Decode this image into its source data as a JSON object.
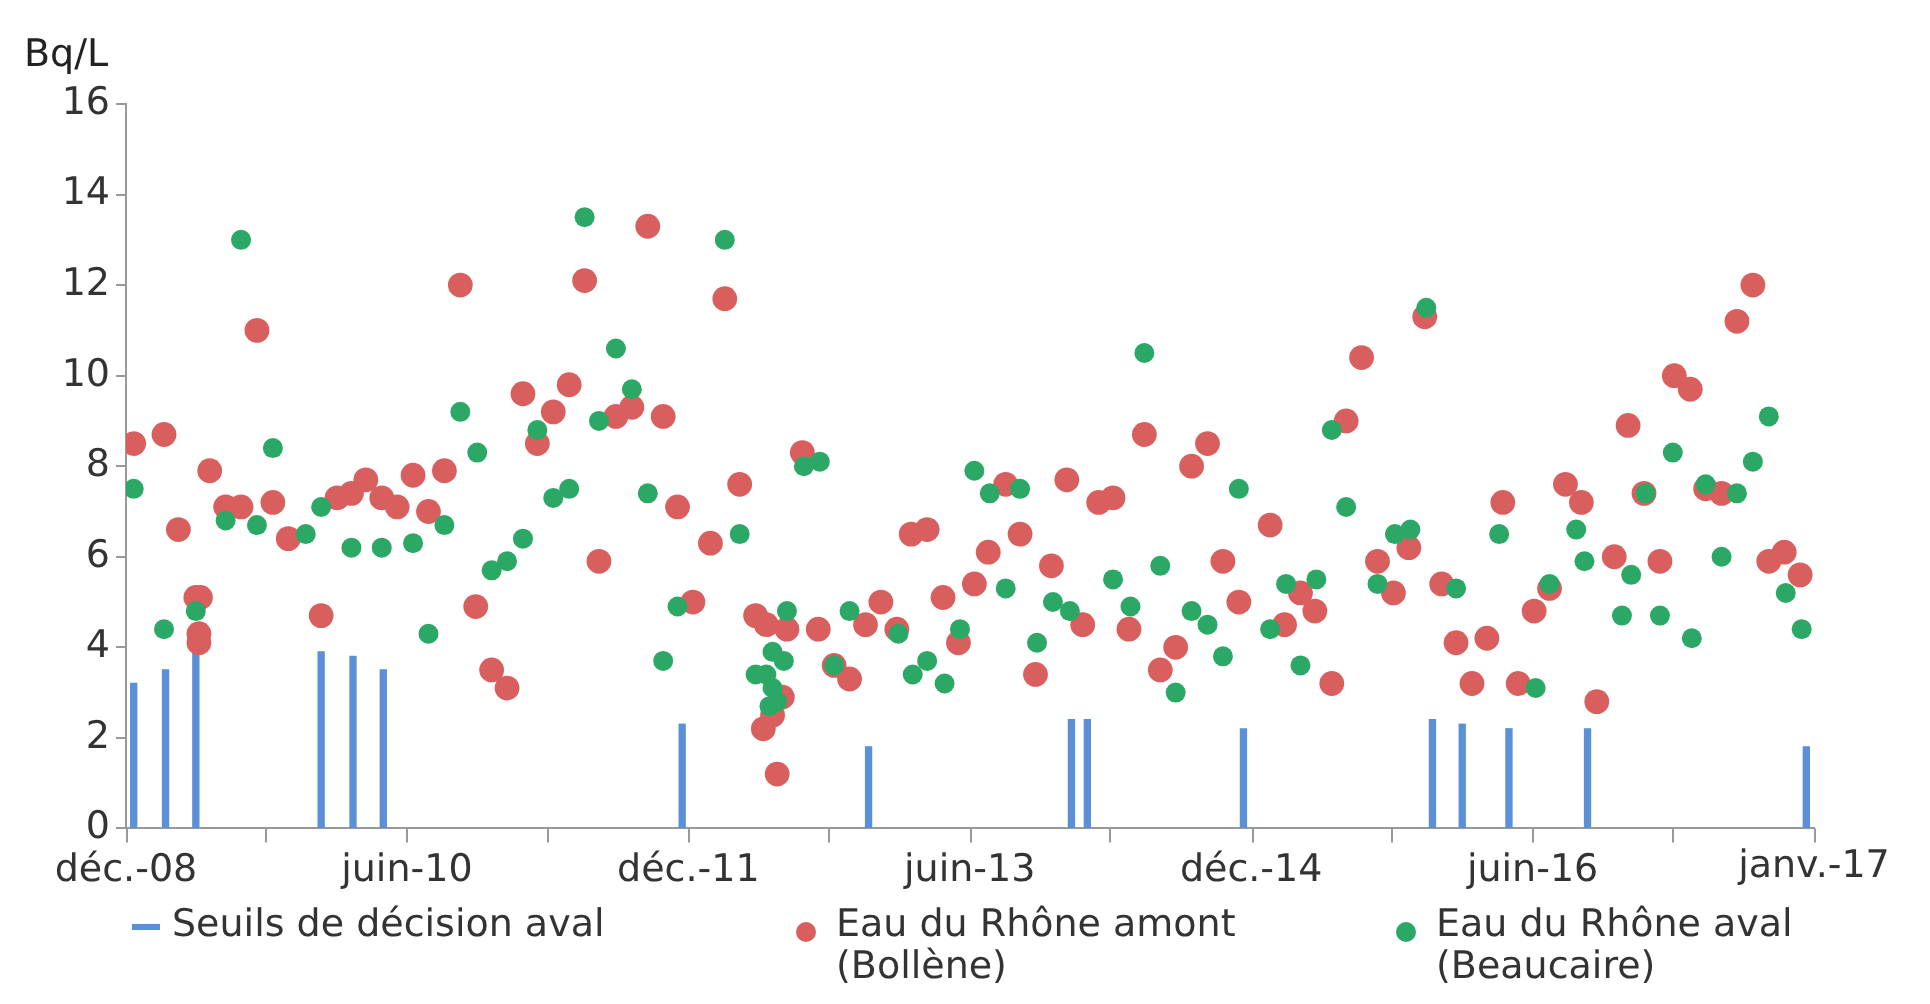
{
  "chart_data": {
    "type": "scatter",
    "ylabel": "Bq/L",
    "annotations": [
      "janv.-17"
    ],
    "xlim": [
      "2008-12-01",
      "2017-12-01"
    ],
    "xticks": [
      {
        "value": "2008-12-01",
        "label": "déc.-08"
      },
      {
        "value": "2010-06-01",
        "label": "juin-10"
      },
      {
        "value": "2011-12-01",
        "label": "déc.-11"
      },
      {
        "value": "2013-06-01",
        "label": "juin-13"
      },
      {
        "value": "2014-12-01",
        "label": "déc.-14"
      },
      {
        "value": "2016-06-01",
        "label": "juin-16"
      },
      {
        "value": "2017-12-01",
        "label": null
      }
    ],
    "ylim": [
      0,
      16
    ],
    "yticks": [
      0,
      2,
      4,
      6,
      8,
      10,
      12,
      14,
      16
    ],
    "grid": false,
    "legend": "bottom",
    "marker": "circle",
    "series": [
      {
        "name": "Seuils de décision aval",
        "type": "bar",
        "color": "#5b8fd6",
        "x": [
          "2008-12-16",
          "2009-02-16",
          "2009-04-16",
          "2009-12-16",
          "2010-02-16",
          "2010-04-16",
          "2011-11-19",
          "2012-11-16",
          "2013-12-16",
          "2014-01-16",
          "2014-11-16",
          "2015-11-19",
          "2016-01-16",
          "2016-04-16",
          "2016-09-16",
          "2017-11-16"
        ],
        "values": [
          3.2,
          3.5,
          4.0,
          3.9,
          3.8,
          3.5,
          2.3,
          1.8,
          2.4,
          2.4,
          2.2,
          2.4,
          2.3,
          2.2,
          2.2,
          1.8
        ]
      },
      {
        "name": "Eau du Rhône amont (Bollène)",
        "color": "#d95f5f",
        "x": [
          "2008-12-16",
          "2009-02-13",
          "2009-03-13",
          "2009-04-16",
          "2009-04-22",
          "2009-04-22",
          "2009-04-25",
          "2009-05-13",
          "2009-06-13",
          "2009-07-13",
          "2009-08-13",
          "2009-09-13",
          "2009-10-13",
          "2009-12-16",
          "2010-01-16",
          "2010-02-13",
          "2010-03-13",
          "2010-04-13",
          "2010-05-13",
          "2010-06-13",
          "2010-07-13",
          "2010-08-13",
          "2010-09-13",
          "2010-10-13",
          "2010-11-13",
          "2010-12-13",
          "2011-01-13",
          "2011-02-10",
          "2011-03-13",
          "2011-04-13",
          "2011-05-13",
          "2011-06-10",
          "2011-07-13",
          "2011-08-13",
          "2011-09-13",
          "2011-10-13",
          "2011-11-10",
          "2011-12-10",
          "2012-01-13",
          "2012-02-10",
          "2012-03-10",
          "2012-04-10",
          "2012-04-25",
          "2012-05-01",
          "2012-05-13",
          "2012-05-22",
          "2012-06-01",
          "2012-06-10",
          "2012-07-10",
          "2012-08-10",
          "2012-09-10",
          "2012-10-10",
          "2012-11-10",
          "2012-12-10",
          "2013-01-10",
          "2013-02-07",
          "2013-03-10",
          "2013-04-10",
          "2013-05-10",
          "2013-06-10",
          "2013-07-07",
          "2013-08-10",
          "2013-09-07",
          "2013-10-07",
          "2013-11-07",
          "2013-12-07",
          "2014-01-07",
          "2014-02-07",
          "2014-03-07",
          "2014-04-07",
          "2014-05-07",
          "2014-06-07",
          "2014-07-07",
          "2014-08-07",
          "2014-09-07",
          "2014-10-07",
          "2014-11-07",
          "2015-01-07",
          "2015-02-04",
          "2015-03-07",
          "2015-04-04",
          "2015-05-07",
          "2015-06-04",
          "2015-07-04",
          "2015-08-04",
          "2015-09-04",
          "2015-10-04",
          "2015-11-04",
          "2015-12-07",
          "2016-01-04",
          "2016-02-04",
          "2016-03-04",
          "2016-04-04",
          "2016-05-04",
          "2016-06-04",
          "2016-07-04",
          "2016-08-04",
          "2016-09-04",
          "2016-10-04",
          "2016-11-07",
          "2016-12-04",
          "2017-01-04",
          "2017-02-04",
          "2017-03-04",
          "2017-04-04",
          "2017-05-04",
          "2017-06-04",
          "2017-07-04",
          "2017-08-04",
          "2017-09-04",
          "2017-10-04",
          "2017-11-04"
        ],
        "values": [
          8.5,
          8.7,
          6.6,
          5.1,
          4.3,
          4.1,
          5.1,
          7.9,
          7.1,
          7.1,
          11.0,
          7.2,
          6.4,
          4.7,
          7.3,
          7.4,
          7.7,
          7.3,
          7.1,
          7.8,
          7.0,
          7.9,
          12.0,
          4.9,
          3.5,
          3.1,
          9.6,
          8.5,
          9.2,
          9.8,
          12.1,
          5.9,
          9.1,
          9.3,
          13.3,
          9.1,
          7.1,
          5.0,
          6.3,
          11.7,
          7.6,
          4.7,
          2.2,
          4.5,
          2.5,
          1.2,
          2.9,
          4.4,
          8.3,
          4.4,
          3.6,
          3.3,
          4.5,
          5.0,
          4.4,
          6.5,
          6.6,
          5.1,
          4.1,
          5.4,
          6.1,
          7.6,
          6.5,
          3.4,
          5.8,
          7.7,
          4.5,
          7.2,
          7.3,
          4.4,
          8.7,
          3.5,
          4.0,
          8.0,
          8.5,
          5.9,
          5.0,
          6.7,
          4.5,
          5.2,
          4.8,
          3.2,
          9.0,
          10.4,
          5.9,
          5.2,
          6.2,
          11.3,
          5.4,
          4.1,
          3.2,
          4.2,
          7.2,
          3.2,
          4.8,
          5.3,
          7.6,
          7.2,
          2.8,
          6.0,
          8.9,
          7.4,
          5.9,
          10.0,
          9.7,
          7.5,
          7.4,
          11.2,
          12.0,
          5.9,
          6.1,
          5.6
        ]
      },
      {
        "name": "Eau du Rhône aval (Beaucaire)",
        "color": "#2ca866",
        "x": [
          "2008-12-16",
          "2009-02-13",
          "2009-04-16",
          "2009-06-13",
          "2009-07-13",
          "2009-08-13",
          "2009-09-13",
          "2009-11-16",
          "2009-12-16",
          "2010-02-13",
          "2010-04-13",
          "2010-06-13",
          "2010-07-13",
          "2010-08-13",
          "2010-09-13",
          "2010-10-16",
          "2010-11-13",
          "2010-12-13",
          "2011-01-13",
          "2011-02-10",
          "2011-03-13",
          "2011-04-13",
          "2011-05-13",
          "2011-06-10",
          "2011-07-13",
          "2011-08-13",
          "2011-09-13",
          "2011-10-13",
          "2011-11-10",
          "2012-02-10",
          "2012-03-10",
          "2012-04-10",
          "2012-05-01",
          "2012-05-07",
          "2012-05-13",
          "2012-05-13",
          "2012-05-22",
          "2012-06-04",
          "2012-06-10",
          "2012-07-13",
          "2012-08-13",
          "2012-09-10",
          "2012-10-10",
          "2013-01-13",
          "2013-02-10",
          "2013-03-10",
          "2013-04-13",
          "2013-05-13",
          "2013-06-10",
          "2013-07-10",
          "2013-08-10",
          "2013-09-07",
          "2013-10-10",
          "2013-11-10",
          "2013-12-13",
          "2014-03-07",
          "2014-04-10",
          "2014-05-07",
          "2014-06-07",
          "2014-07-07",
          "2014-08-07",
          "2014-09-07",
          "2014-10-07",
          "2014-11-07",
          "2015-01-07",
          "2015-02-07",
          "2015-03-07",
          "2015-04-07",
          "2015-05-07",
          "2015-06-04",
          "2015-08-04",
          "2015-09-07",
          "2015-10-07",
          "2015-11-07",
          "2016-01-04",
          "2016-03-28",
          "2016-06-07",
          "2016-07-04",
          "2016-08-25",
          "2016-09-10",
          "2016-11-22",
          "2016-12-10",
          "2017-01-07",
          "2017-02-04",
          "2017-03-01",
          "2017-04-07",
          "2017-05-04",
          "2017-06-04",
          "2017-07-04",
          "2017-08-04",
          "2017-09-04",
          "2017-10-07",
          "2017-11-07"
        ],
        "values": [
          7.5,
          4.4,
          4.8,
          6.8,
          13.0,
          6.7,
          8.4,
          6.5,
          7.1,
          6.2,
          6.2,
          6.3,
          4.3,
          6.7,
          9.2,
          8.3,
          5.7,
          5.9,
          6.4,
          8.8,
          7.3,
          7.5,
          13.5,
          9.0,
          10.6,
          9.7,
          7.4,
          3.7,
          4.9,
          13.0,
          6.5,
          3.4,
          3.4,
          2.7,
          3.9,
          3.1,
          2.8,
          3.7,
          4.8,
          8.0,
          8.1,
          3.6,
          4.8,
          4.3,
          3.4,
          3.7,
          3.2,
          4.4,
          7.9,
          7.4,
          5.3,
          7.5,
          4.1,
          5.0,
          4.8,
          5.5,
          4.9,
          10.5,
          5.8,
          3.0,
          4.8,
          4.5,
          3.8,
          7.5,
          4.4,
          5.4,
          3.6,
          5.5,
          8.8,
          7.1,
          5.4,
          6.5,
          6.6,
          11.5,
          5.3,
          6.5,
          3.1,
          5.4,
          6.6,
          5.9,
          4.7,
          5.6,
          7.4,
          4.7,
          8.3,
          4.2,
          7.6,
          6.0,
          7.4,
          8.1,
          9.1,
          5.2,
          4.4
        ]
      }
    ]
  }
}
